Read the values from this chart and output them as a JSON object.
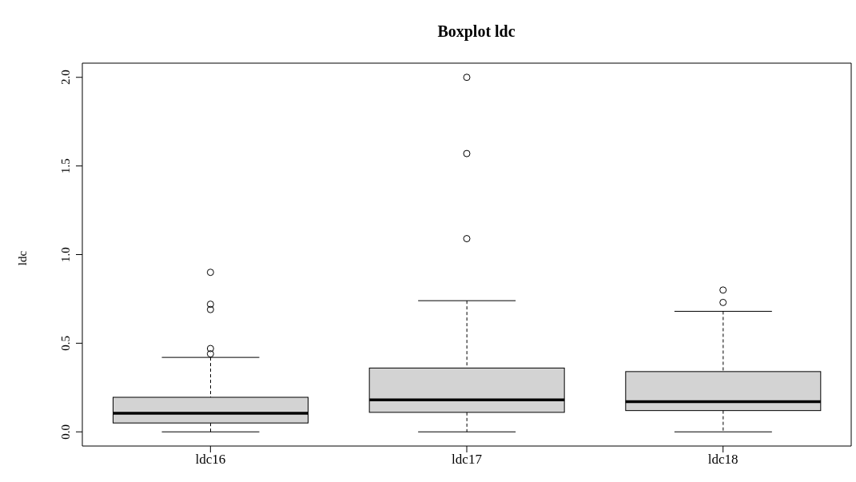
{
  "chart_data": {
    "type": "box",
    "title": "Boxplot ldc",
    "ylabel": "ldc",
    "categories": [
      "ldc16",
      "ldc17",
      "ldc18"
    ],
    "color": "#d3d3d3",
    "boxes": [
      {
        "low": 0,
        "q1": 0.05,
        "median": 0.105,
        "q3": 0.195,
        "high": 0.42,
        "outliers": [
          0.44,
          0.47,
          0.69,
          0.72,
          0.9
        ]
      },
      {
        "low": 0,
        "q1": 0.11,
        "median": 0.18,
        "q3": 0.36,
        "high": 0.74,
        "outliers": [
          1.09,
          1.57,
          2.0
        ]
      },
      {
        "low": 0,
        "q1": 0.12,
        "median": 0.17,
        "q3": 0.34,
        "high": 0.68,
        "outliers": [
          0.73,
          0.8
        ]
      }
    ],
    "ylim": [
      -0.08,
      2.08
    ],
    "yticks": [
      {
        "value": 0,
        "label": "0.0"
      },
      {
        "value": 0.5,
        "label": "0.5"
      },
      {
        "value": 1,
        "label": "1.0"
      },
      {
        "value": 1.5,
        "label": "1.5"
      },
      {
        "value": 2,
        "label": "2.0"
      }
    ]
  }
}
